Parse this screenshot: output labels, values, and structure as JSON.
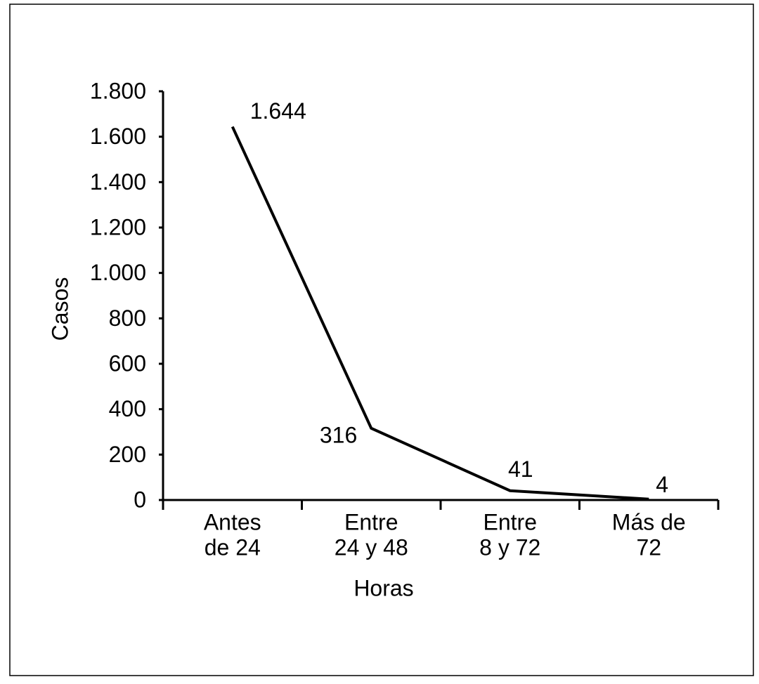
{
  "chart_data": {
    "type": "line",
    "categories": [
      [
        "Antes",
        "de 24"
      ],
      [
        "Entre",
        "24 y 48"
      ],
      [
        "Entre",
        "8 y 72"
      ],
      [
        "Más de",
        "72"
      ]
    ],
    "values": [
      1644,
      316,
      41,
      4
    ],
    "value_labels": [
      "1.644",
      "316",
      "41",
      "4"
    ],
    "color": "#000000",
    "xlabel": "Horas",
    "ylabel": "Casos",
    "ylim": [
      0,
      1800
    ],
    "yticks": [
      0,
      200,
      400,
      600,
      800,
      {
        "value": 1000,
        "label": "1.000"
      },
      {
        "value": 1200,
        "label": "1.200"
      },
      {
        "value": 1400,
        "label": "1.400"
      },
      {
        "value": 1600,
        "label": "1.600"
      },
      {
        "value": 1800,
        "label": "1.800"
      }
    ],
    "grid": false
  }
}
